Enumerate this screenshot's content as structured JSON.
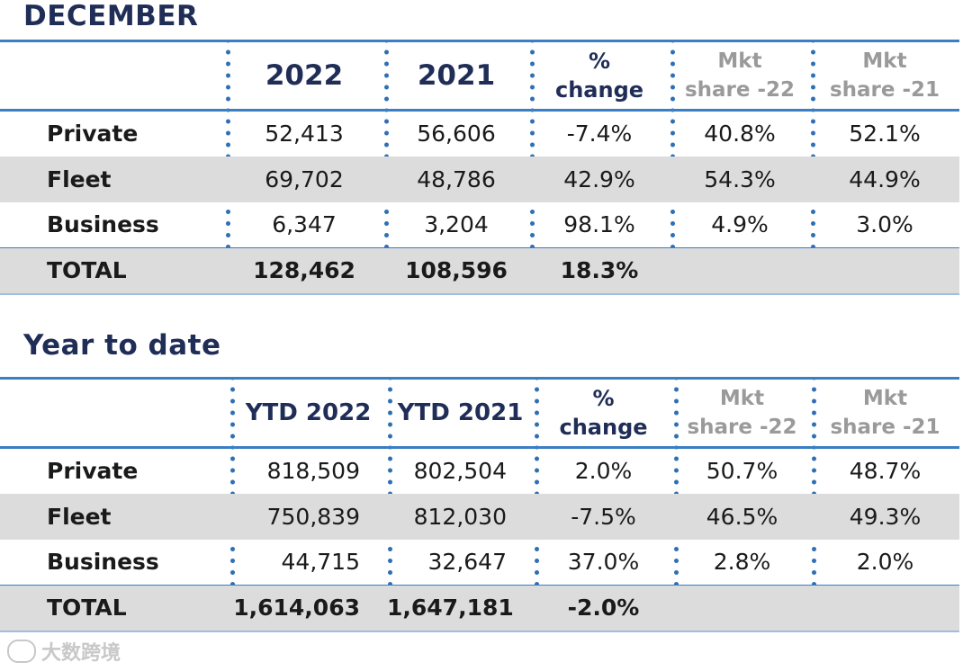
{
  "december": {
    "title": "DECEMBER",
    "headers": {
      "year1": "2022",
      "year2": "2021",
      "pct_line1": "%",
      "pct_line2": "change",
      "mkt1_line1": "Mkt",
      "mkt1_line2": "share -22",
      "mkt2_line1": "Mkt",
      "mkt2_line2": "share -21"
    },
    "rows": [
      {
        "label": "Private",
        "v2022": "52,413",
        "v2021": "56,606",
        "pct": "-7.4%",
        "mkt22": "40.8%",
        "mkt21": "52.1%"
      },
      {
        "label": "Fleet",
        "v2022": "69,702",
        "v2021": "48,786",
        "pct": "42.9%",
        "mkt22": "54.3%",
        "mkt21": "44.9%"
      },
      {
        "label": "Business",
        "v2022": "6,347",
        "v2021": "3,204",
        "pct": "98.1%",
        "mkt22": "4.9%",
        "mkt21": "3.0%"
      }
    ],
    "total": {
      "label": "TOTAL",
      "v2022": "128,462",
      "v2021": "108,596",
      "pct": "18.3%"
    }
  },
  "ytd": {
    "title": "Year to date",
    "headers": {
      "year1": "YTD 2022",
      "year2": "YTD 2021",
      "pct_line1": "%",
      "pct_line2": "change",
      "mkt1_line1": "Mkt",
      "mkt1_line2": "share -22",
      "mkt2_line1": "Mkt",
      "mkt2_line2": "share -21"
    },
    "rows": [
      {
        "label": "Private",
        "v2022": "818,509",
        "v2021": "802,504",
        "pct": "2.0%",
        "mkt22": "50.7%",
        "mkt21": "48.7%"
      },
      {
        "label": "Fleet",
        "v2022": "750,839",
        "v2021": "812,030",
        "pct": "-7.5%",
        "mkt22": "46.5%",
        "mkt21": "49.3%"
      },
      {
        "label": "Business",
        "v2022": "44,715",
        "v2021": "32,647",
        "pct": "37.0%",
        "mkt22": "2.8%",
        "mkt21": "2.0%"
      }
    ],
    "total": {
      "label": "TOTAL",
      "v2022": "1,614,063",
      "v2021": "1,647,181",
      "pct": "-2.0%"
    }
  },
  "watermark": "大数跨境",
  "colors": {
    "accent": "#3a7ec3",
    "title": "#1f2d57",
    "shade": "#dcdcdc",
    "grey_header": "#9a9a9a"
  }
}
